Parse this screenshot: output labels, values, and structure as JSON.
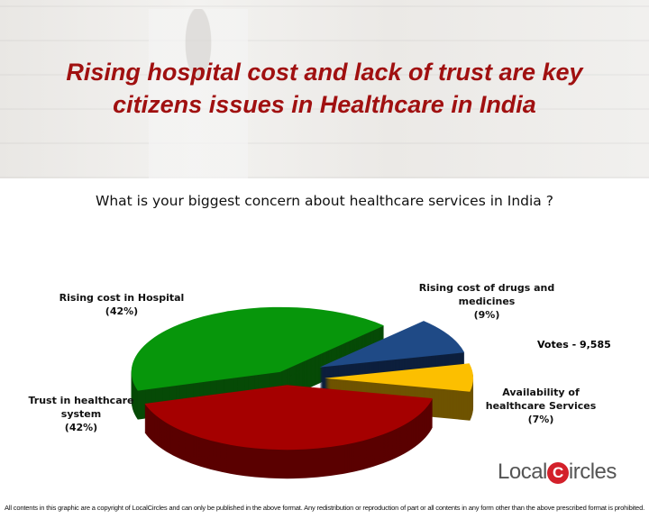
{
  "header": {
    "title_line1": "Rising hospital cost and lack of trust are key",
    "title_line2": "citizens issues in Healthcare in India"
  },
  "chart_data": {
    "type": "pie",
    "title": "What is your biggest concern about healthcare services in India ?",
    "slices": [
      {
        "label_line1": "Trust in healthcare",
        "label_line2": "system",
        "pct_label": "(42%)",
        "value": 42,
        "color": "#a50000",
        "side": "#5a0000"
      },
      {
        "label_line1": "Rising cost in Hospital",
        "label_line2": "",
        "pct_label": "(42%)",
        "value": 42,
        "color": "#07960b",
        "side": "#064a06"
      },
      {
        "label_line1": "Rising cost of drugs and",
        "label_line2": "medicines",
        "pct_label": "(9%)",
        "value": 9,
        "color": "#1f4a86",
        "side": "#0c1f3c"
      },
      {
        "label_line1": "Availability of",
        "label_line2": "healthcare Services",
        "pct_label": "(7%)",
        "value": 7,
        "color": "#fcbf00",
        "side": "#6e5300"
      }
    ],
    "annotation": "Votes - 9,585"
  },
  "logo": {
    "pre": "Local",
    "c": "C",
    "post": "ircles"
  },
  "footer": "All contents in this graphic are a copyright of LocalCircles and can only be published in the above format. Any redistribution or reproduction of part or all contents in any form other than the above prescribed format is prohibited."
}
